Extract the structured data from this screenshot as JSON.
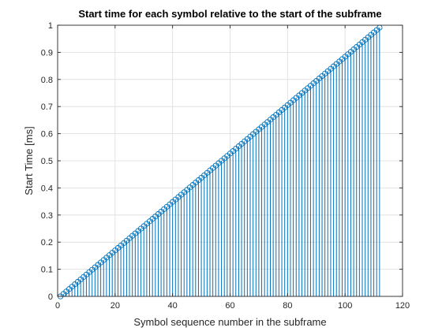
{
  "chart_data": {
    "type": "stem",
    "title": "Start time for each symbol relative to the start of the subframe",
    "xlabel": "Symbol sequence number in the subframe",
    "ylabel": "Start Time [ms]",
    "xlim": [
      0,
      120
    ],
    "ylim": [
      0,
      1
    ],
    "x_ticks": [
      0,
      20,
      40,
      60,
      80,
      100,
      120
    ],
    "y_ticks": [
      0,
      0.1,
      0.2,
      0.3,
      0.4,
      0.5,
      0.6,
      0.7,
      0.8,
      0.9,
      1
    ],
    "grid": true,
    "x_start": 1,
    "x_end": 112,
    "y_start": 0,
    "y_end": 0.9911,
    "n_points": 112,
    "color": "#0072BD",
    "marker": "circle"
  }
}
